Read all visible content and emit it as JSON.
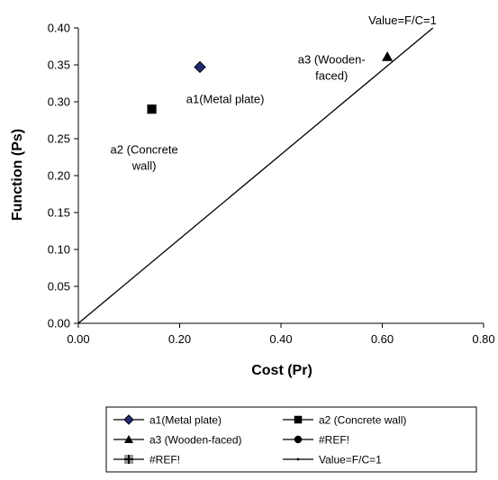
{
  "chart_data": {
    "type": "scatter",
    "xlabel": "Cost (Pr)",
    "ylabel": "Function (Ps)",
    "xlim": [
      0,
      0.8
    ],
    "ylim": [
      0,
      0.4
    ],
    "xticks": [
      "0.00",
      "0.20",
      "0.40",
      "0.60",
      "0.80"
    ],
    "yticks": [
      "0.00",
      "0.05",
      "0.10",
      "0.15",
      "0.20",
      "0.25",
      "0.30",
      "0.35",
      "0.40"
    ],
    "grid": false,
    "legend_position": "bottom",
    "series": [
      {
        "name": "a1(Metal plate)",
        "marker": "diamond",
        "color": "#1f2a7a",
        "points": [
          [
            0.24,
            0.347
          ]
        ]
      },
      {
        "name": "a2 (Concrete wall)",
        "marker": "square",
        "color": "#000000",
        "points": [
          [
            0.145,
            0.29
          ]
        ]
      },
      {
        "name": "a3 (Wooden-faced)",
        "marker": "triangle",
        "color": "#000000",
        "points": [
          [
            0.61,
            0.361
          ]
        ]
      },
      {
        "name": "#REF!",
        "marker": "circle",
        "color": "#000000",
        "points": []
      },
      {
        "name": "#REF!",
        "marker": "plus",
        "color": "#000000",
        "points": []
      },
      {
        "name": "Value=F/C=1",
        "marker": "line",
        "color": "#000000",
        "points": [
          [
            0,
            0
          ],
          [
            0.7,
            0.4
          ]
        ]
      }
    ],
    "annotations": [
      {
        "lines": [
          "a1(Metal plate)"
        ],
        "x": 0.29,
        "y": 0.298
      },
      {
        "lines": [
          "a2 (Concrete",
          "wall)"
        ],
        "x": 0.13,
        "y": 0.23
      },
      {
        "lines": [
          "a3 (Wooden-",
          "faced)"
        ],
        "x": 0.5,
        "y": 0.352
      },
      {
        "lines": [
          "Value=F/C=1"
        ],
        "x": 0.64,
        "y": 0.405
      }
    ]
  }
}
